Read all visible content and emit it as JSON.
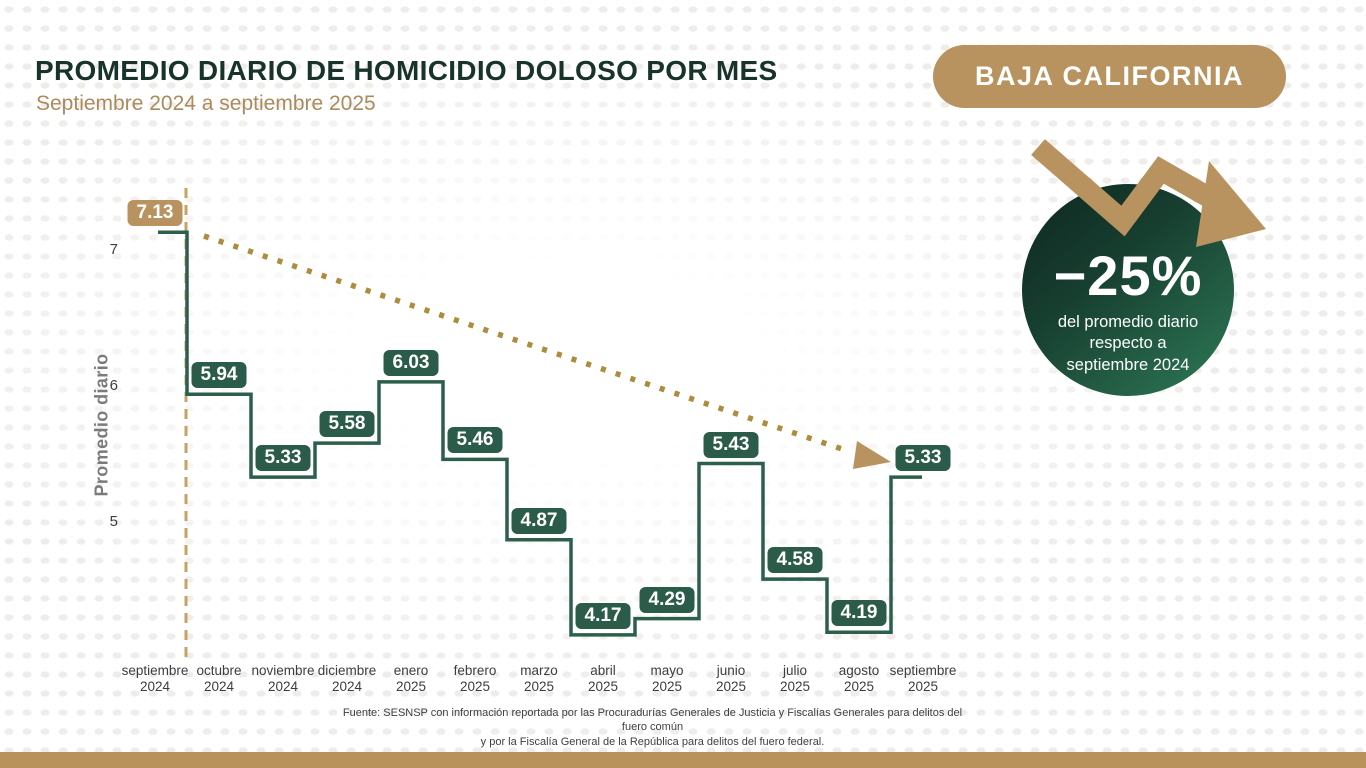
{
  "header": {
    "title": "PROMEDIO DIARIO DE HOMICIDIO DOLOSO POR MES",
    "subtitle": "Septiembre 2024 a septiembre 2025",
    "state_badge": "BAJA CALIFORNIA"
  },
  "highlight": {
    "value": "−25%",
    "description": [
      "del promedio diario",
      "respecto a",
      "septiembre 2024"
    ]
  },
  "chart_data": {
    "type": "line",
    "subtype": "step",
    "title": "PROMEDIO DIARIO DE HOMICIDIO DOLOSO POR MES",
    "subtitle": "Septiembre 2024 a septiembre 2025",
    "region": "BAJA CALIFORNIA",
    "xlabel": "",
    "ylabel": "Promedio diario",
    "yticks": [
      5,
      6,
      7
    ],
    "ylim": [
      3.9,
      7.4
    ],
    "grid": false,
    "legend": "none",
    "categories": [
      {
        "month": "septiembre",
        "year": "2024"
      },
      {
        "month": "octubre",
        "year": "2024"
      },
      {
        "month": "noviembre",
        "year": "2024"
      },
      {
        "month": "diciembre",
        "year": "2024"
      },
      {
        "month": "enero",
        "year": "2025"
      },
      {
        "month": "febrero",
        "year": "2025"
      },
      {
        "month": "marzo",
        "year": "2025"
      },
      {
        "month": "abril",
        "year": "2025"
      },
      {
        "month": "mayo",
        "year": "2025"
      },
      {
        "month": "junio",
        "year": "2025"
      },
      {
        "month": "julio",
        "year": "2025"
      },
      {
        "month": "agosto",
        "year": "2025"
      },
      {
        "month": "septiembre",
        "year": "2025"
      }
    ],
    "values": [
      7.13,
      5.94,
      5.33,
      5.58,
      6.03,
      5.46,
      4.87,
      4.17,
      4.29,
      5.43,
      4.58,
      4.19,
      5.33
    ],
    "annotations": {
      "trend_arrow": "dotted gold line from septiembre 2024 (7.13) down to septiembre 2025 (5.33)",
      "reference_line": "dashed gold vertical line after septiembre 2024",
      "change_badge": "−25% del promedio diario respecto a septiembre 2024"
    }
  },
  "footer": {
    "source_line1": "Fuente: SESNSP con información reportada por las Procuradurías Generales de Justicia y Fiscalías Generales para delitos del fuero común",
    "source_line2": "y por la Fiscalía General de la República para delitos del fuero federal."
  },
  "colors": {
    "gold": "#b8935f",
    "gold_dots": "#ad8c3e",
    "gold_dash": "#c7a263",
    "title_green": "#17332b",
    "line_green": "#2c5f4c",
    "pill_green": "#2b5b49",
    "circle_gradient_start": "#0f2a22",
    "circle_gradient_end": "#2e7a57",
    "bottom_bar": "#b8925a"
  }
}
